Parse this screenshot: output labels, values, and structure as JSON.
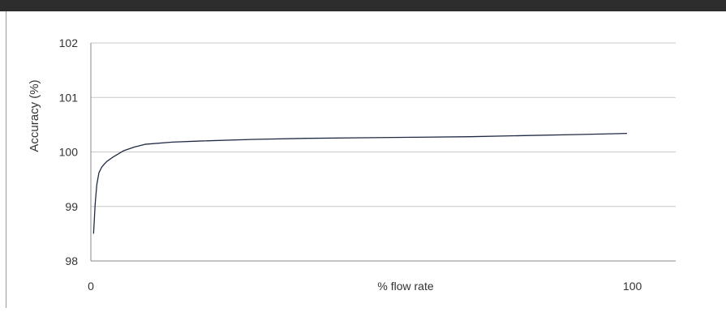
{
  "chart_data": {
    "type": "line",
    "title": "",
    "xlabel": "% flow rate",
    "ylabel": "Accuracy (%)",
    "xlim": [
      0,
      108
    ],
    "ylim": [
      98,
      102
    ],
    "x_tick_labels": [
      {
        "value": 0,
        "label": "0"
      },
      {
        "value": 100,
        "label": "100"
      }
    ],
    "y_tick_labels": [
      {
        "value": 98,
        "label": "98"
      },
      {
        "value": 99,
        "label": "99"
      },
      {
        "value": 100,
        "label": "100"
      },
      {
        "value": 101,
        "label": "101"
      },
      {
        "value": 102,
        "label": "102"
      }
    ],
    "grid": "horizontal",
    "series": [
      {
        "color": "#1f2a44",
        "x": [
          0.5,
          0.8,
          1.1,
          1.5,
          2,
          2.5,
          3,
          4,
          5,
          6,
          8,
          10,
          15,
          20,
          30,
          40,
          50,
          60,
          70,
          80,
          90,
          99
        ],
        "y": [
          98.5,
          99.05,
          99.4,
          99.62,
          99.72,
          99.78,
          99.83,
          99.9,
          99.96,
          100.02,
          100.09,
          100.14,
          100.18,
          100.2,
          100.23,
          100.25,
          100.26,
          100.27,
          100.28,
          100.3,
          100.32,
          100.34
        ]
      }
    ]
  }
}
